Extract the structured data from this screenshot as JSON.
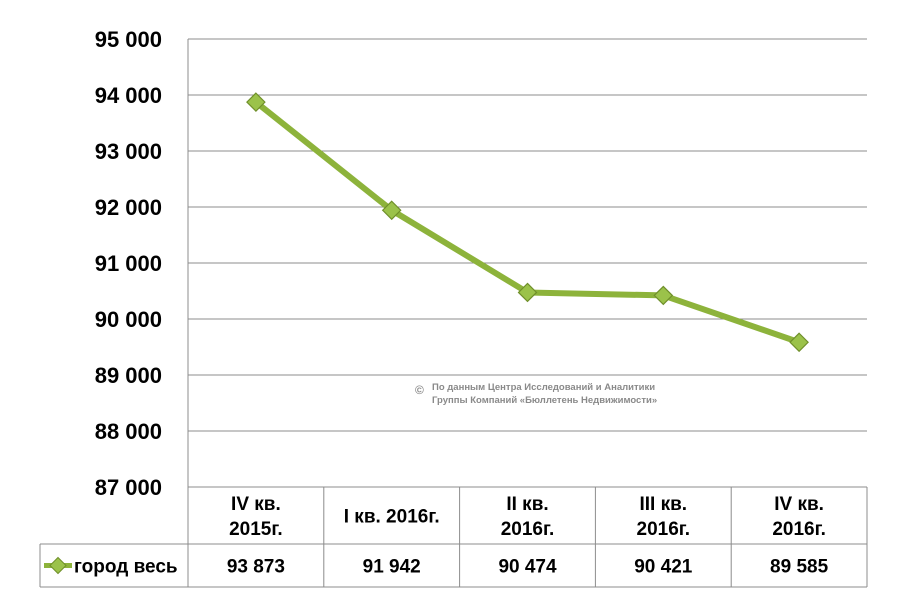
{
  "chart_data": {
    "type": "line",
    "categories": [
      [
        "IV кв.",
        "2015г."
      ],
      [
        "I кв. 2016г."
      ],
      [
        "II кв.",
        "2016г."
      ],
      [
        "III кв.",
        "2016г."
      ],
      [
        "IV кв.",
        "2016г."
      ]
    ],
    "series": [
      {
        "name": "город весь",
        "values": [
          93873,
          91942,
          90474,
          90421,
          89585
        ],
        "value_labels": [
          "93 873",
          "91 942",
          "90 474",
          "90 421",
          "89 585"
        ],
        "color": "#8db33b"
      }
    ],
    "ylim": [
      87000,
      95000
    ],
    "yticks": [
      {
        "value": 87000,
        "label": "87 000"
      },
      {
        "value": 88000,
        "label": "88 000"
      },
      {
        "value": 89000,
        "label": "89 000"
      },
      {
        "value": 90000,
        "label": "90 000"
      },
      {
        "value": 91000,
        "label": "91 000"
      },
      {
        "value": 92000,
        "label": "92 000"
      },
      {
        "value": 93000,
        "label": "93 000"
      },
      {
        "value": 94000,
        "label": "94 000"
      },
      {
        "value": 95000,
        "label": "95 000"
      }
    ],
    "grid": true,
    "legend": "data-table",
    "title": "",
    "xlabel": "",
    "ylabel": "",
    "watermark": {
      "symbol": "©",
      "lines": [
        "По данным Центра Исследований и Аналитики",
        "Группы Компаний «Бюллетень Недвижимости»"
      ]
    },
    "colors": {
      "line": "#8db33b",
      "marker_fill": "#9bc24a",
      "marker_stroke": "#6f8f2a",
      "grid": "#8c8c8c",
      "watermark": "#8a8a8a"
    }
  }
}
